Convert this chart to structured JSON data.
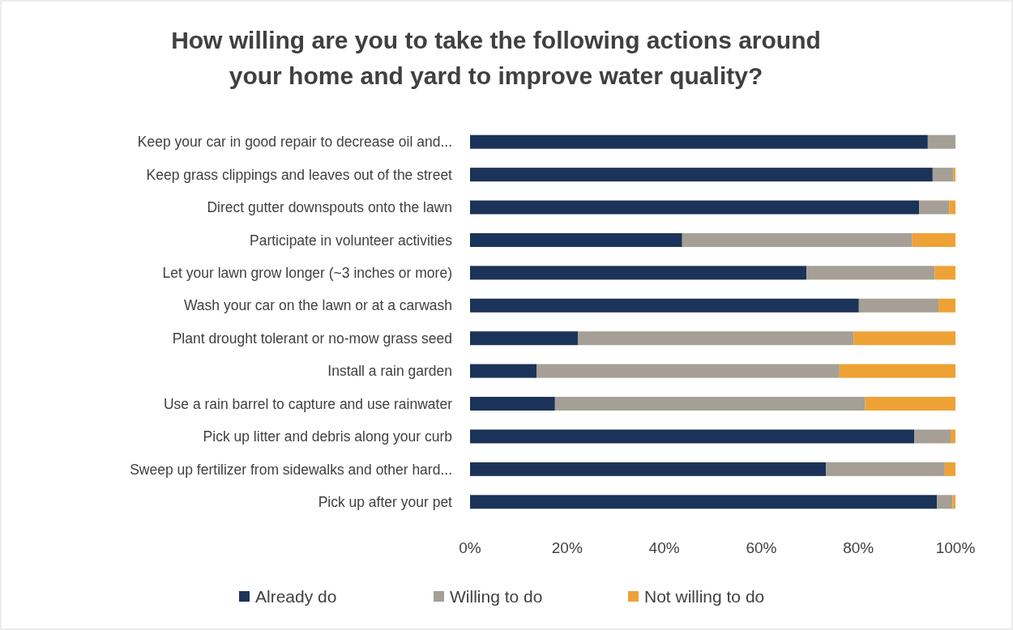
{
  "chart_data": {
    "type": "bar",
    "orientation": "horizontal",
    "stacked": true,
    "title": "How willing are you to take the following actions around\nyour home and yard to improve water quality?",
    "categories": [
      "Keep your car in good repair to decrease oil and...",
      "Keep grass clippings and leaves out of the street",
      "Direct gutter downspouts onto the lawn",
      "Participate in volunteer activities",
      "Let your lawn grow longer (~3 inches or more)",
      "Wash your car on the lawn or at a carwash",
      "Plant drought tolerant or no-mow grass seed",
      "Install a rain garden",
      "Use a rain barrel to capture and use rainwater",
      "Pick up litter and debris along your curb",
      "Sweep up fertilizer from sidewalks and other hard...",
      "Pick up after your pet"
    ],
    "series": [
      {
        "name": "Already do",
        "color": "#1b3358",
        "values": [
          94.3,
          95.3,
          92.5,
          43.7,
          69.3,
          80.1,
          22.2,
          13.7,
          17.5,
          91.5,
          73.3,
          96.2
        ]
      },
      {
        "name": "Willing to do",
        "color": "#a59f95",
        "values": [
          5.7,
          4.3,
          6.2,
          47.4,
          26.4,
          16.4,
          56.8,
          62.4,
          63.9,
          7.5,
          24.5,
          3.2
        ]
      },
      {
        "name": "Not willing to do",
        "color": "#eea236",
        "values": [
          0,
          0.4,
          1.3,
          8.9,
          4.3,
          3.5,
          21.0,
          23.9,
          18.6,
          1.0,
          2.2,
          0.6
        ]
      }
    ],
    "xlim": [
      0,
      100
    ],
    "xticks": [
      {
        "value": 0,
        "label": "0%"
      },
      {
        "value": 20,
        "label": "20%"
      },
      {
        "value": 40,
        "label": "40%"
      },
      {
        "value": 60,
        "label": "60%"
      },
      {
        "value": 80,
        "label": "80%"
      },
      {
        "value": 100,
        "label": "100%"
      }
    ],
    "grid": false,
    "legend": "bottom"
  }
}
